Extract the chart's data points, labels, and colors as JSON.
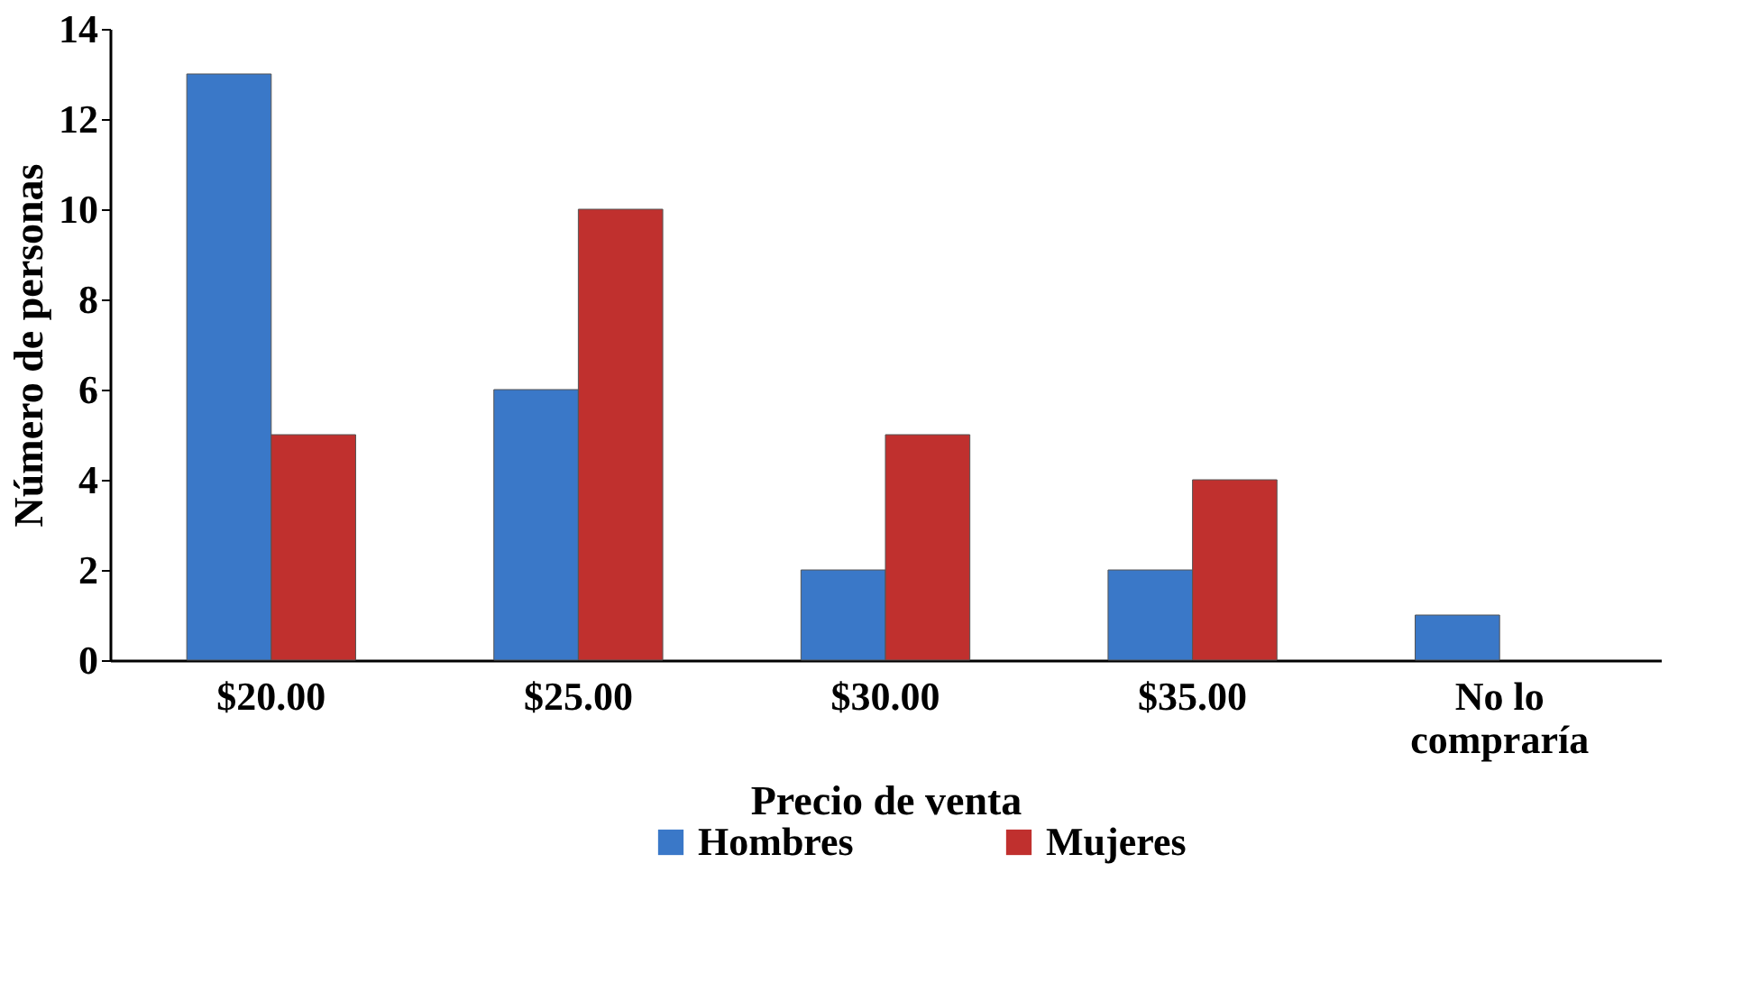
{
  "chart_data": {
    "type": "bar",
    "xlabel": "Precio de venta",
    "ylabel": "Número  de personas",
    "categories": [
      "$20.00",
      "$25.00",
      "$30.00",
      "$35.00",
      "No lo compraría"
    ],
    "series": [
      {
        "name": "Hombres",
        "color": "#3a78c8",
        "values": [
          13,
          6,
          2,
          2,
          1
        ]
      },
      {
        "name": "Mujeres",
        "color": "#c0302e",
        "values": [
          5,
          10,
          5,
          4,
          null
        ]
      }
    ],
    "ylim": [
      0,
      14
    ],
    "yticks": [
      0,
      2,
      4,
      6,
      8,
      10,
      12,
      14
    ],
    "grid": false,
    "legend": "bottom"
  }
}
